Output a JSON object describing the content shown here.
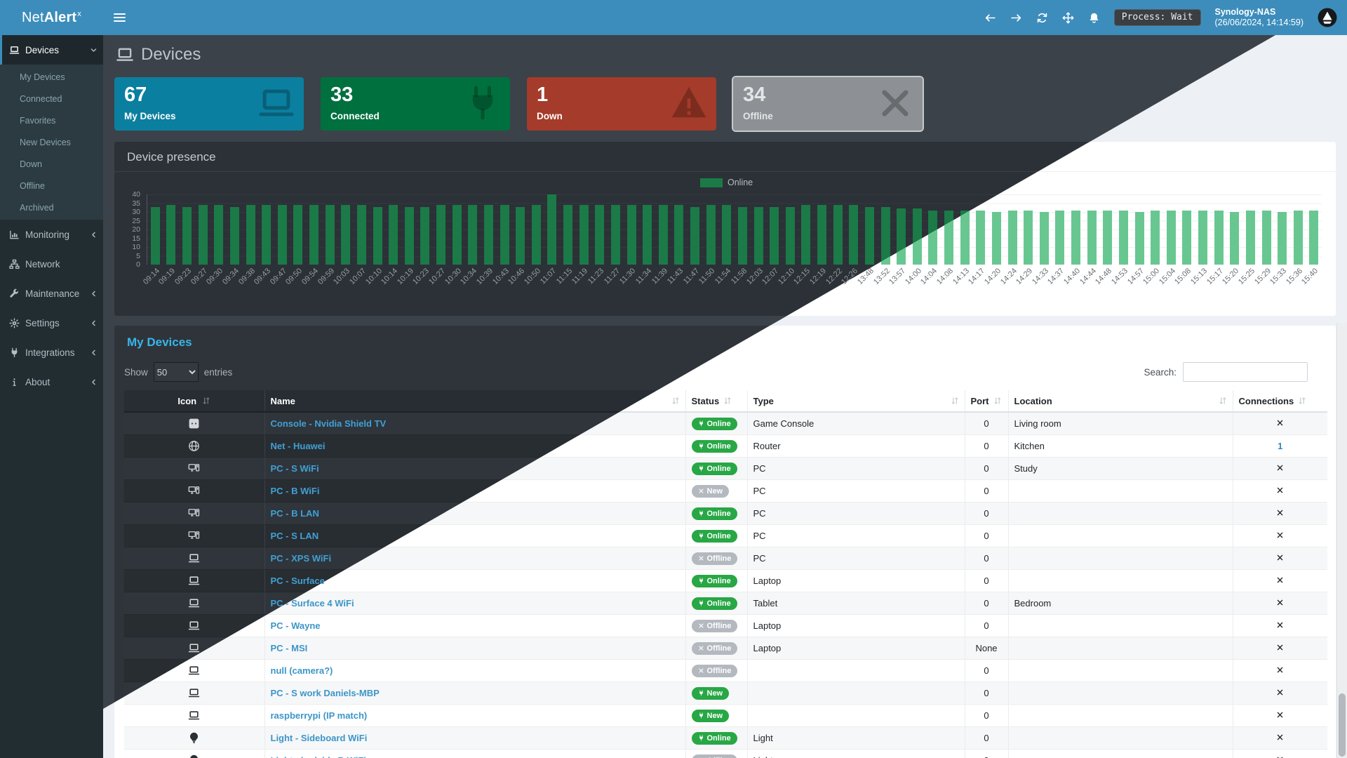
{
  "navbar": {
    "brand_prefix": "Net",
    "brand_bold": "Alert",
    "brand_sup": "x",
    "process_status": "Process: Wait",
    "server_name": "Synology-NAS",
    "server_datetime": "(26/06/2024, 14:14:59)"
  },
  "sidebar": {
    "devices_label": "Devices",
    "devices_submenu": [
      "My Devices",
      "Connected",
      "Favorites",
      "New Devices",
      "Down",
      "Offline",
      "Archived"
    ],
    "items": [
      {
        "label": "Monitoring",
        "icon": "chart-bar",
        "chevron": true
      },
      {
        "label": "Network",
        "icon": "sitemap",
        "chevron": false
      },
      {
        "label": "Maintenance",
        "icon": "wrench",
        "chevron": true
      },
      {
        "label": "Settings",
        "icon": "gear",
        "chevron": true
      },
      {
        "label": "Integrations",
        "icon": "plug",
        "chevron": true
      },
      {
        "label": "About",
        "icon": "info",
        "chevron": true
      }
    ]
  },
  "page": {
    "title": "Devices"
  },
  "cards": [
    {
      "value": "67",
      "label": "My Devices",
      "icon": "laptop",
      "bg": "#0b7f9f",
      "highlight": false
    },
    {
      "value": "33",
      "label": "Connected",
      "icon": "plug",
      "bg": "#00703f",
      "highlight": false
    },
    {
      "value": "1",
      "label": "Down",
      "icon": "warning",
      "bg": "#a53b2a",
      "highlight": false
    },
    {
      "value": "34",
      "label": "Offline",
      "icon": "x",
      "bg": "#8d9195",
      "highlight": true
    }
  ],
  "chart": {
    "title": "Device presence",
    "legend_label": "Online"
  },
  "chart_data": {
    "type": "bar",
    "title": "Device presence",
    "series_name": "Online",
    "legend_position": "top-right",
    "ylim": [
      0,
      40
    ],
    "yticks": [
      0,
      5,
      10,
      15,
      20,
      25,
      30,
      35,
      40
    ],
    "x": [
      "09:14",
      "09:19",
      "09:23",
      "09:27",
      "09:30",
      "09:34",
      "09:38",
      "09:43",
      "09:47",
      "09:50",
      "09:54",
      "09:59",
      "10:03",
      "10:07",
      "10:10",
      "10:14",
      "10:19",
      "10:23",
      "10:27",
      "10:30",
      "10:34",
      "10:39",
      "10:43",
      "10:46",
      "10:50",
      "11:07",
      "11:15",
      "11:19",
      "11:23",
      "11:27",
      "11:30",
      "11:34",
      "11:39",
      "11:43",
      "11:47",
      "11:50",
      "11:54",
      "11:58",
      "12:03",
      "12:07",
      "12:10",
      "12:15",
      "12:19",
      "12:22",
      "12:26",
      "13:48",
      "13:52",
      "13:57",
      "14:00",
      "14:04",
      "14:08",
      "14:13",
      "14:17",
      "14:20",
      "14:24",
      "14:29",
      "14:33",
      "14:37",
      "14:40",
      "14:44",
      "14:48",
      "14:53",
      "14:57",
      "15:00",
      "15:04",
      "15:08",
      "15:13",
      "15:17",
      "15:20",
      "15:25",
      "15:29",
      "15:33",
      "15:36",
      "15:40"
    ],
    "values": [
      33,
      34,
      33,
      34,
      34,
      33,
      34,
      34,
      34,
      34,
      34,
      34,
      34,
      34,
      33,
      34,
      33,
      33,
      34,
      34,
      34,
      34,
      34,
      33,
      34,
      40,
      34,
      34,
      34,
      34,
      34,
      34,
      34,
      34,
      33,
      34,
      34,
      33,
      33,
      33,
      33,
      34,
      34,
      34,
      34,
      33,
      33,
      32,
      32,
      31,
      31,
      31,
      31,
      30,
      31,
      31,
      30,
      31,
      31,
      31,
      31,
      31,
      30,
      31,
      31,
      31,
      31,
      31,
      30,
      31,
      31,
      30,
      31,
      31
    ],
    "bar_color_dark_theme": "#1b7a47",
    "bar_color_light_theme": "#68c791"
  },
  "table": {
    "title": "My Devices",
    "show_label": "Show",
    "page_size": "50",
    "entries_label": "entries",
    "search_label": "Search:",
    "search_value": "",
    "columns": [
      {
        "label": "Icon",
        "sortable": true,
        "align": "center"
      },
      {
        "label": "Name",
        "sortable": true,
        "sort_right": true
      },
      {
        "label": "Status",
        "sortable": true
      },
      {
        "label": "Type",
        "sortable": true,
        "sort_right": true
      },
      {
        "label": "Port",
        "sortable": true
      },
      {
        "label": "Location",
        "sortable": true,
        "sort_right": true
      },
      {
        "label": "Connections",
        "sortable": true
      }
    ],
    "rows": [
      {
        "icon": "outlet",
        "name": "Console - Nvidia Shield TV",
        "status": "Online",
        "status_kind": "online",
        "type": "Game Console",
        "port": "0",
        "location": "Living room",
        "connections": "x"
      },
      {
        "icon": "globe",
        "name": "Net - Huawei",
        "status": "Online",
        "status_kind": "online",
        "type": "Router",
        "port": "0",
        "location": "Kitchen",
        "connections": "1"
      },
      {
        "icon": "desktop",
        "name": "PC - S WiFi",
        "status": "Online",
        "status_kind": "online",
        "type": "PC",
        "port": "0",
        "location": "Study",
        "connections": "x"
      },
      {
        "icon": "desktop",
        "name": "PC - B WiFi",
        "status": "New",
        "status_kind": "new-off",
        "type": "PC",
        "port": "0",
        "location": "",
        "connections": "x"
      },
      {
        "icon": "desktop",
        "name": "PC - B LAN",
        "status": "Online",
        "status_kind": "online",
        "type": "PC",
        "port": "0",
        "location": "",
        "connections": "x"
      },
      {
        "icon": "desktop",
        "name": "PC - S LAN",
        "status": "Online",
        "status_kind": "online",
        "type": "PC",
        "port": "0",
        "location": "",
        "connections": "x"
      },
      {
        "icon": "laptop",
        "name": "PC - XPS WiFi",
        "status": "Offline",
        "status_kind": "offline",
        "type": "PC",
        "port": "0",
        "location": "",
        "connections": "x"
      },
      {
        "icon": "laptop",
        "name": "PC - Surface",
        "status": "Online",
        "status_kind": "online",
        "type": "Laptop",
        "port": "0",
        "location": "",
        "connections": "x"
      },
      {
        "icon": "laptop",
        "name": "PC - Surface 4 WiFi",
        "status": "Online",
        "status_kind": "online",
        "type": "Tablet",
        "port": "0",
        "location": "Bedroom",
        "connections": "x"
      },
      {
        "icon": "laptop",
        "name": "PC - Wayne",
        "status": "Offline",
        "status_kind": "offline",
        "type": "Laptop",
        "port": "0",
        "location": "",
        "connections": "x"
      },
      {
        "icon": "laptop",
        "name": "PC - MSI",
        "status": "Offline",
        "status_kind": "offline",
        "type": "Laptop",
        "port": "None",
        "location": "",
        "connections": "x"
      },
      {
        "icon": "laptop",
        "name": "null (camera?)",
        "status": "Offline",
        "status_kind": "offline",
        "type": "",
        "port": "0",
        "location": "",
        "connections": "x"
      },
      {
        "icon": "laptop",
        "name": "PC - S work Daniels-MBP",
        "status": "New",
        "status_kind": "new-on",
        "type": "",
        "port": "0",
        "location": "",
        "connections": "x"
      },
      {
        "icon": "laptop",
        "name": "raspberrypi (IP match)",
        "status": "New",
        "status_kind": "new-on",
        "type": "",
        "port": "0",
        "location": "",
        "connections": "x"
      },
      {
        "icon": "lightbulb",
        "name": "Light - Sideboard WiFi",
        "status": "Online",
        "status_kind": "online",
        "type": "Light",
        "port": "0",
        "location": "",
        "connections": "x"
      },
      {
        "icon": "lightbulb",
        "name": "Light - bedside B WiFi",
        "status": "Offline",
        "status_kind": "offline",
        "type": "Light",
        "port": "0",
        "location": "",
        "connections": "x"
      },
      {
        "icon": "tv",
        "name": "",
        "status": "",
        "status_kind": "",
        "type": "",
        "port": "",
        "location": "",
        "connections": ""
      }
    ]
  },
  "colors": {
    "navbar": "#3c8dbc",
    "sidebar": "#222d32",
    "online_green": "#28a745",
    "offline_gray": "#b3b9bf",
    "link_blue": "#3c96c8",
    "section_title_blue": "#38b6e8"
  }
}
